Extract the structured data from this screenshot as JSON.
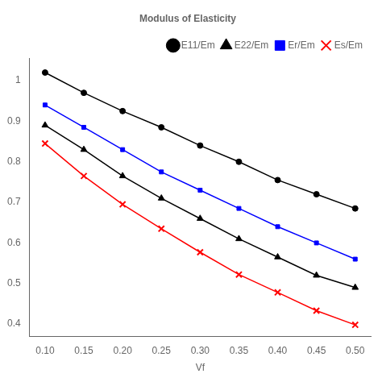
{
  "chart_data": {
    "type": "line",
    "title": "Modulus of Elasticity",
    "xlabel": "Vf",
    "x": [
      0.1,
      0.15,
      0.2,
      0.25,
      0.3,
      0.35,
      0.4,
      0.45,
      0.5
    ],
    "series": [
      {
        "name": "E11/Em",
        "color": "#000000",
        "marker": "circle",
        "values": [
          1.02,
          0.97,
          0.925,
          0.885,
          0.84,
          0.8,
          0.755,
          0.72,
          0.685
        ]
      },
      {
        "name": "E22/Em",
        "color": "#000000",
        "marker": "triangle",
        "values": [
          0.89,
          0.83,
          0.765,
          0.71,
          0.66,
          0.61,
          0.565,
          0.52,
          0.49
        ]
      },
      {
        "name": "Er/Em",
        "color": "#0000ff",
        "marker": "square",
        "values": [
          0.94,
          0.885,
          0.83,
          0.775,
          0.73,
          0.685,
          0.64,
          0.6,
          0.56
        ]
      },
      {
        "name": "Es/Em",
        "color": "#ff0000",
        "marker": "x",
        "values": [
          0.845,
          0.765,
          0.695,
          0.635,
          0.577,
          0.522,
          0.478,
          0.433,
          0.398
        ]
      }
    ],
    "xlim": [
      0.08,
      0.52
    ],
    "ylim": [
      0.37,
      1.055
    ],
    "xticks": [
      {
        "value": 0.1,
        "label": "0.10"
      },
      {
        "value": 0.15,
        "label": "0.15"
      },
      {
        "value": 0.2,
        "label": "0.20"
      },
      {
        "value": 0.25,
        "label": "0.25"
      },
      {
        "value": 0.3,
        "label": "0.30"
      },
      {
        "value": 0.35,
        "label": "0.35"
      },
      {
        "value": 0.4,
        "label": "0.40"
      },
      {
        "value": 0.45,
        "label": "0.45"
      },
      {
        "value": 0.5,
        "label": "0.50"
      }
    ],
    "yticks": [
      0.4,
      0.5,
      0.6,
      0.7,
      0.8,
      0.9,
      1.0
    ],
    "grid": false,
    "legend": "upper right"
  }
}
